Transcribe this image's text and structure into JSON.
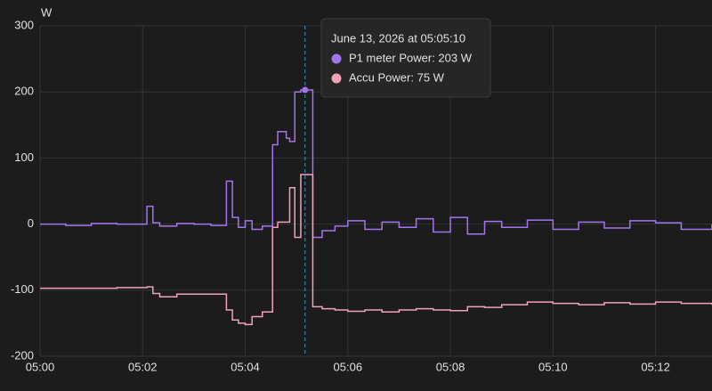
{
  "chart_data": {
    "type": "line",
    "step": true,
    "y_axis_label": "W",
    "x": [
      "05:00:00",
      "05:00:30",
      "05:01:00",
      "05:01:30",
      "05:02:05",
      "05:02:12",
      "05:02:20",
      "05:02:40",
      "05:03:00",
      "05:03:20",
      "05:03:38",
      "05:03:45",
      "05:03:52",
      "05:04:00",
      "05:04:08",
      "05:04:20",
      "05:04:32",
      "05:04:38",
      "05:04:48",
      "05:04:52",
      "05:04:58",
      "05:05:05",
      "05:05:10",
      "05:05:19",
      "05:05:30",
      "05:05:45",
      "05:06:00",
      "05:06:20",
      "05:06:40",
      "05:07:00",
      "05:07:20",
      "05:07:40",
      "05:08:00",
      "05:08:20",
      "05:08:40",
      "05:09:00",
      "05:09:30",
      "05:10:00",
      "05:10:30",
      "05:11:00",
      "05:11:30",
      "05:12:00",
      "05:12:30",
      "05:13:06"
    ],
    "series": [
      {
        "name": "P1 meter Power",
        "color": "#a374f0",
        "values": [
          0,
          -2,
          1,
          0,
          27,
          2,
          -3,
          1,
          0,
          -2,
          65,
          10,
          -5,
          5,
          -8,
          -3,
          120,
          140,
          130,
          125,
          200,
          203,
          203,
          -20,
          -10,
          -3,
          5,
          -8,
          3,
          -5,
          8,
          -12,
          10,
          -15,
          4,
          -5,
          6,
          -8,
          3,
          -6,
          5,
          2,
          -8,
          0
        ]
      },
      {
        "name": "Accu Power",
        "color": "#f4a0b6",
        "values": [
          -97,
          -97,
          -97,
          -96,
          -95,
          -105,
          -110,
          -106,
          -106,
          -106,
          -130,
          -145,
          -150,
          -152,
          -140,
          -133,
          -5,
          3,
          3,
          55,
          -20,
          75,
          75,
          -125,
          -128,
          -130,
          -132,
          -130,
          -133,
          -130,
          -128,
          -130,
          -131,
          -125,
          -126,
          -122,
          -118,
          -120,
          -122,
          -119,
          -121,
          -118,
          -120,
          -122
        ]
      }
    ],
    "xlim": [
      "05:00:00",
      "05:13:06"
    ],
    "xticks": [
      {
        "value": "05:00:00",
        "label": "05:00"
      },
      {
        "value": "05:02:00",
        "label": "05:02"
      },
      {
        "value": "05:04:00",
        "label": "05:04"
      },
      {
        "value": "05:06:00",
        "label": "05:06"
      },
      {
        "value": "05:08:00",
        "label": "05:08"
      },
      {
        "value": "05:10:00",
        "label": "05:10"
      },
      {
        "value": "05:12:00",
        "label": "05:12"
      }
    ],
    "ylim": [
      -200,
      300
    ],
    "yticks": [
      -200,
      -100,
      0,
      100,
      200,
      300
    ],
    "grid": true,
    "tooltip": {
      "title": "June 13, 2026 at 05:05:10",
      "items": [
        "P1 meter Power: 203 W",
        "Accu Power: 75 W"
      ]
    }
  }
}
